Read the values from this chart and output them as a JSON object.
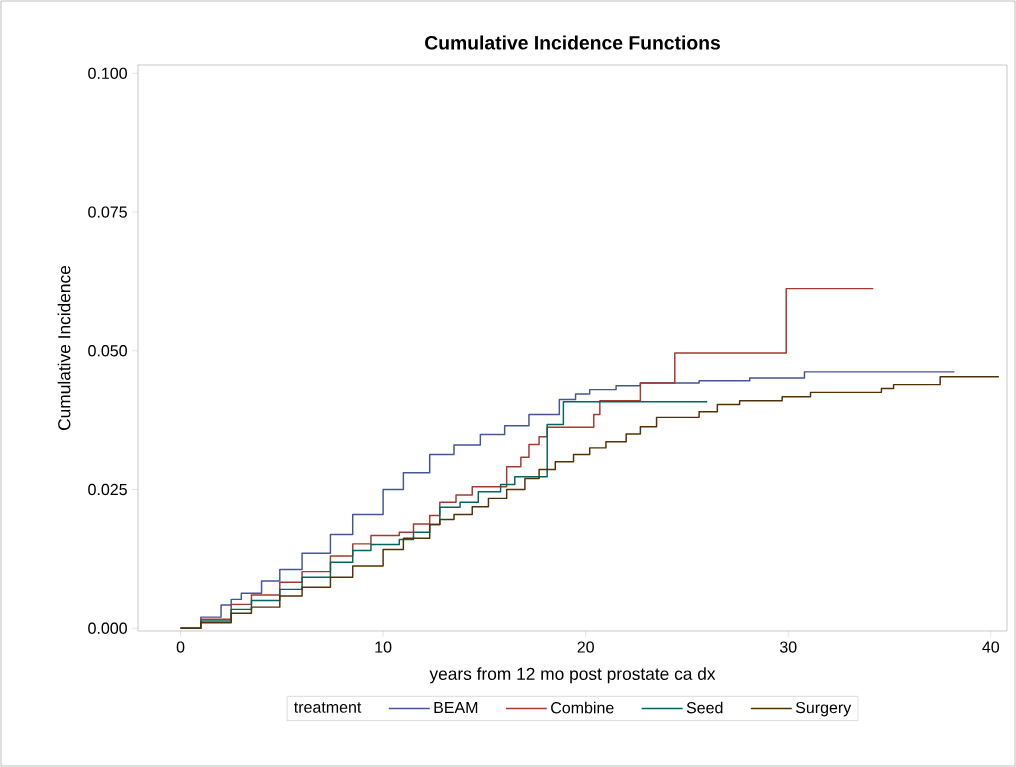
{
  "chart_data": {
    "type": "step",
    "title": "Cumulative Incidence Functions",
    "xlabel": "years from 12 mo post prostate ca dx",
    "ylabel": "Cumulative Incidence",
    "legend_title": "treatment",
    "xlim": [
      -2.1,
      40.8
    ],
    "ylim": [
      -0.0005,
      0.1015
    ],
    "xticks": [
      0,
      10,
      20,
      30,
      40
    ],
    "yticks": [
      {
        "value": 0,
        "label": "0.000"
      },
      {
        "value": 0.025,
        "label": "0.025"
      },
      {
        "value": 0.05,
        "label": "0.050"
      },
      {
        "value": 0.075,
        "label": "0.075"
      },
      {
        "value": 0.1,
        "label": "0.100"
      }
    ],
    "grid": false,
    "legend": "bottom",
    "marker": "none",
    "line_style": "solid",
    "series": [
      {
        "name": "BEAM",
        "color": "#445694",
        "x": [
          0,
          1,
          2,
          2.5,
          3,
          4,
          4.9,
          6,
          7.4,
          8.5,
          10,
          11,
          12.3,
          13.5,
          14.8,
          16,
          17.2,
          18.7,
          19.5,
          20.2,
          21.5,
          22.7,
          25.6,
          28.1,
          30.8,
          38.2
        ],
        "values": [
          0,
          0.002,
          0.0042,
          0.0052,
          0.0063,
          0.0085,
          0.0106,
          0.0135,
          0.0169,
          0.0205,
          0.025,
          0.028,
          0.0313,
          0.033,
          0.0349,
          0.0365,
          0.0385,
          0.0412,
          0.0422,
          0.043,
          0.0437,
          0.0442,
          0.0446,
          0.0451,
          0.0462,
          0.0462
        ]
      },
      {
        "name": "Combine",
        "color": "#A23A2E",
        "x": [
          0,
          1,
          2.5,
          3.5,
          4.9,
          6,
          7.4,
          8.5,
          9.4,
          10.8,
          11.5,
          12.3,
          12.8,
          13.6,
          14.4,
          16.1,
          16.8,
          17.2,
          17.7,
          18.1,
          20.4,
          20.7,
          22.7,
          24.4,
          29.9,
          34.2
        ],
        "values": [
          0,
          0.0016,
          0.0043,
          0.006,
          0.0083,
          0.0102,
          0.013,
          0.0152,
          0.0167,
          0.0173,
          0.0188,
          0.0203,
          0.0227,
          0.024,
          0.0255,
          0.0291,
          0.0308,
          0.0331,
          0.0345,
          0.0362,
          0.0385,
          0.041,
          0.0442,
          0.0496,
          0.0612,
          0.0612
        ]
      },
      {
        "name": "Seed",
        "color": "#01665E",
        "x": [
          0,
          1,
          2.5,
          3.5,
          4.9,
          6,
          7.4,
          8.5,
          9.4,
          10.8,
          11.5,
          12.3,
          12.8,
          13.8,
          14.7,
          15.8,
          16.5,
          18.1,
          18.9,
          26.0
        ],
        "values": [
          0,
          0.0013,
          0.0034,
          0.005,
          0.007,
          0.0092,
          0.0119,
          0.014,
          0.0151,
          0.016,
          0.0173,
          0.0187,
          0.0218,
          0.0227,
          0.0246,
          0.0259,
          0.0273,
          0.0367,
          0.0408,
          0.0408
        ]
      },
      {
        "name": "Surgery",
        "color": "#543005",
        "x": [
          0,
          1,
          2.5,
          3.5,
          4.9,
          6,
          7.4,
          8.5,
          10,
          11,
          12.3,
          12.8,
          13.5,
          14.4,
          15.2,
          16.1,
          17,
          17.7,
          18.5,
          19.4,
          20.2,
          21,
          22,
          22.7,
          23.5,
          25.6,
          26.5,
          27.6,
          29.7,
          31.1,
          34.6,
          35.2,
          37.5,
          40.4
        ],
        "values": [
          0,
          0.001,
          0.0027,
          0.0038,
          0.0058,
          0.0074,
          0.0092,
          0.0112,
          0.0142,
          0.0162,
          0.0187,
          0.0196,
          0.0205,
          0.0219,
          0.0234,
          0.025,
          0.027,
          0.0286,
          0.03,
          0.0313,
          0.0325,
          0.0336,
          0.035,
          0.0363,
          0.038,
          0.039,
          0.0403,
          0.041,
          0.0417,
          0.0425,
          0.0432,
          0.0439,
          0.0453,
          0.0453
        ]
      }
    ]
  }
}
